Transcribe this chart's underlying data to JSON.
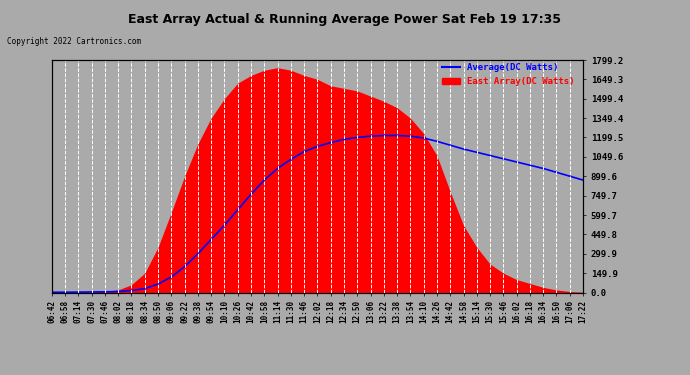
{
  "title": "East Array Actual & Running Average Power Sat Feb 19 17:35",
  "copyright": "Copyright 2022 Cartronics.com",
  "legend_avg": "Average(DC Watts)",
  "legend_east": "East Array(DC Watts)",
  "ymin": 0.0,
  "ymax": 1799.2,
  "yticks": [
    0.0,
    149.9,
    299.9,
    449.8,
    599.7,
    749.7,
    899.6,
    1049.6,
    1199.5,
    1349.4,
    1499.4,
    1649.3,
    1799.2
  ],
  "bg_color": "#aaaaaa",
  "plot_bg_color": "#aaaaaa",
  "fill_color": "#ff0000",
  "avg_line_color": "#0000ff",
  "grid_color": "#ffffff",
  "title_color": "#000000",
  "copyright_color": "#000000",
  "legend_avg_color": "#0000ff",
  "legend_east_color": "#ff0000",
  "xtick_labels": [
    "06:42",
    "06:58",
    "07:14",
    "07:30",
    "07:46",
    "08:02",
    "08:18",
    "08:34",
    "08:50",
    "09:06",
    "09:22",
    "09:38",
    "09:54",
    "10:10",
    "10:26",
    "10:42",
    "10:58",
    "11:14",
    "11:30",
    "11:46",
    "12:02",
    "12:18",
    "12:34",
    "12:50",
    "13:06",
    "13:22",
    "13:38",
    "13:54",
    "14:10",
    "14:26",
    "14:42",
    "14:58",
    "15:14",
    "15:30",
    "15:46",
    "16:02",
    "16:18",
    "16:34",
    "16:50",
    "17:06",
    "17:22"
  ],
  "east_array_y": [
    2,
    3,
    4,
    6,
    10,
    20,
    60,
    150,
    350,
    620,
    900,
    1150,
    1350,
    1500,
    1620,
    1680,
    1720,
    1740,
    1720,
    1680,
    1650,
    1600,
    1580,
    1560,
    1520,
    1480,
    1430,
    1350,
    1230,
    1060,
    780,
    520,
    350,
    220,
    150,
    100,
    70,
    40,
    20,
    8,
    2
  ],
  "avg_y": [
    2,
    2,
    3,
    4,
    5,
    8,
    15,
    30,
    65,
    120,
    200,
    300,
    410,
    520,
    640,
    760,
    870,
    960,
    1030,
    1090,
    1130,
    1160,
    1185,
    1200,
    1210,
    1215,
    1215,
    1210,
    1195,
    1170,
    1140,
    1110,
    1085,
    1060,
    1035,
    1010,
    985,
    960,
    930,
    900,
    870
  ]
}
